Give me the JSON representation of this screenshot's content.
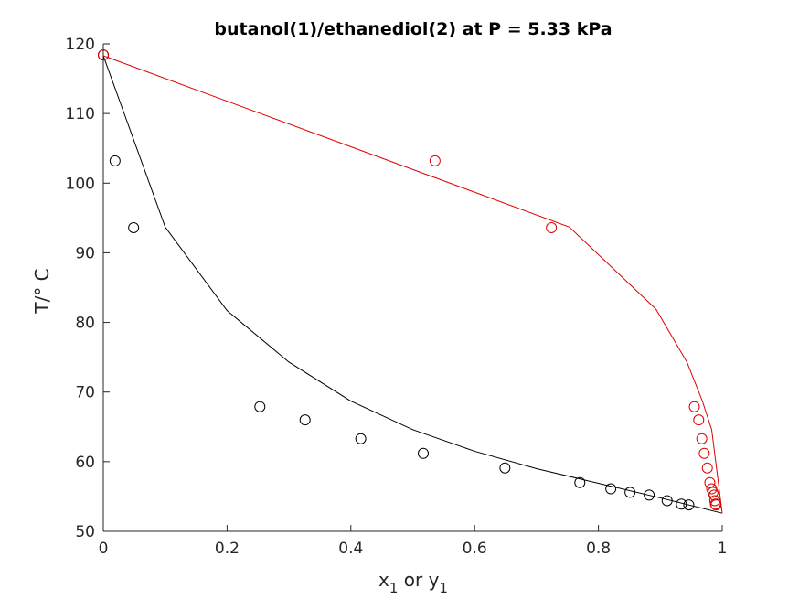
{
  "chart_data": {
    "type": "line",
    "title": "butanol(1)/ethanediol(2) at P = 5.33 kPa",
    "xlabel": {
      "main": "x",
      "sub1": "1",
      "mid": " or y",
      "sub2": "1"
    },
    "ylabel": "T/° C",
    "xlim": [
      0,
      1
    ],
    "ylim": [
      50,
      120
    ],
    "xticks": [
      "0",
      "0.2",
      "0.4",
      "0.6",
      "0.8",
      "1"
    ],
    "yticks": [
      "50",
      "60",
      "70",
      "80",
      "90",
      "100",
      "110",
      "120"
    ],
    "grid": false,
    "colors": {
      "liquid": "#000000",
      "vapor": "#e00000",
      "axis": "#262626"
    },
    "series": [
      {
        "role": "liquid-model-line",
        "marker": "none",
        "x": [
          0,
          0.1,
          0.2,
          0.3,
          0.4,
          0.5,
          0.6,
          0.7,
          0.8,
          0.9,
          1.0
        ],
        "y": [
          118.3,
          93.7,
          81.7,
          74.3,
          68.7,
          64.6,
          61.5,
          59.0,
          56.9,
          54.8,
          52.6
        ]
      },
      {
        "role": "vapor-model-line",
        "marker": "none",
        "x": [
          0,
          0.753,
          0.893,
          0.943,
          0.968,
          0.983,
          1.0
        ],
        "y": [
          118.3,
          93.7,
          81.9,
          74.3,
          68.7,
          64.6,
          52.6
        ]
      },
      {
        "role": "liquid-data",
        "marker": "circle",
        "x": [
          0,
          0.019,
          0.049,
          0.253,
          0.326,
          0.416,
          0.517,
          0.649,
          0.77,
          0.82,
          0.851,
          0.882,
          0.911,
          0.934,
          0.946
        ],
        "y": [
          118.4,
          103.2,
          93.6,
          67.9,
          66.0,
          63.3,
          61.2,
          59.1,
          57.0,
          56.1,
          55.6,
          55.2,
          54.4,
          53.9,
          53.8
        ]
      },
      {
        "role": "vapor-data",
        "marker": "circle",
        "x": [
          0,
          0.536,
          0.724,
          0.955,
          0.962,
          0.967,
          0.971,
          0.976,
          0.98,
          0.983,
          0.985,
          0.987,
          0.988,
          0.989,
          0.99
        ],
        "y": [
          118.4,
          103.2,
          93.6,
          67.9,
          66.0,
          63.3,
          61.2,
          59.1,
          57.0,
          56.1,
          55.6,
          55.2,
          54.4,
          53.9,
          53.8
        ]
      }
    ]
  }
}
